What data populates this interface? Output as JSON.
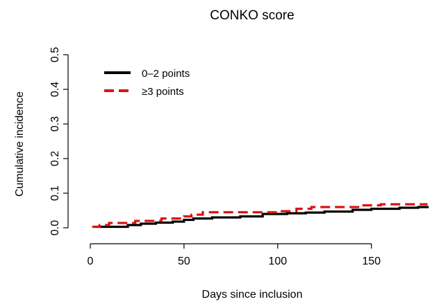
{
  "chart_data": {
    "type": "line",
    "title": "CONKO score",
    "xlabel": "Days since inclusion",
    "ylabel": "Cumulative incidence",
    "xlim": [
      0,
      182
    ],
    "ylim": [
      0,
      0.5
    ],
    "x_ticks": [
      "0",
      "50",
      "100",
      "150"
    ],
    "x_tick_values": [
      0,
      50,
      100,
      150
    ],
    "y_ticks": [
      "0.0",
      "0.1",
      "0.2",
      "0.3",
      "0.4",
      "0.5"
    ],
    "y_tick_values": [
      0,
      0.1,
      0.2,
      0.3,
      0.4,
      0.5
    ],
    "grid": false,
    "legend_position": "top-left",
    "series": [
      {
        "name": "0–2 points",
        "color": "#000000",
        "style": "solid",
        "points": [
          [
            3,
            0.003
          ],
          [
            14,
            0.003
          ],
          [
            20,
            0.008
          ],
          [
            27,
            0.012
          ],
          [
            35,
            0.015
          ],
          [
            44,
            0.018
          ],
          [
            50,
            0.023
          ],
          [
            55,
            0.027
          ],
          [
            65,
            0.03
          ],
          [
            80,
            0.033
          ],
          [
            92,
            0.04
          ],
          [
            105,
            0.042
          ],
          [
            115,
            0.044
          ],
          [
            125,
            0.047
          ],
          [
            140,
            0.052
          ],
          [
            150,
            0.055
          ],
          [
            165,
            0.058
          ],
          [
            175,
            0.06
          ],
          [
            180,
            0.063
          ]
        ]
      },
      {
        "name": "≥3 points",
        "color": "#dd1111",
        "style": "dashed",
        "points": [
          [
            1,
            0.003
          ],
          [
            5,
            0.008
          ],
          [
            10,
            0.014
          ],
          [
            24,
            0.02
          ],
          [
            38,
            0.027
          ],
          [
            50,
            0.033
          ],
          [
            54,
            0.038
          ],
          [
            60,
            0.045
          ],
          [
            100,
            0.048
          ],
          [
            110,
            0.055
          ],
          [
            118,
            0.06
          ],
          [
            145,
            0.065
          ],
          [
            155,
            0.068
          ],
          [
            180,
            0.068
          ]
        ]
      }
    ]
  }
}
